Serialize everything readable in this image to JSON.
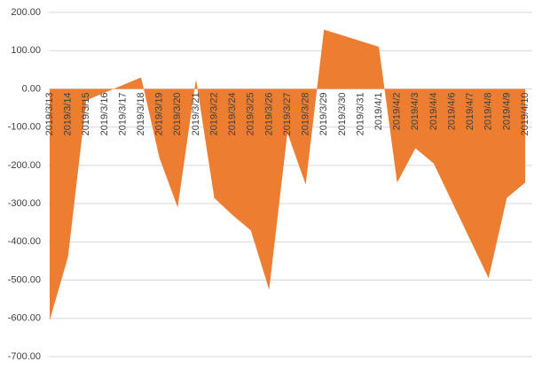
{
  "chart_data": {
    "type": "area",
    "categories": [
      "2019/3/13",
      "2019/3/14",
      "2019/3/15",
      "2019/3/16",
      "2019/3/17",
      "2019/3/18",
      "2019/3/19",
      "2019/3/20",
      "2019/3/21",
      "2019/3/22",
      "2019/3/24",
      "2019/3/25",
      "2019/3/26",
      "2019/3/27",
      "2019/3/28",
      "2019/3/29",
      "2019/3/30",
      "2019/3/31",
      "2019/4/1",
      "2019/4/2",
      "2019/4/3",
      "2019/4/4",
      "2019/4/6",
      "2019/4/7",
      "2019/4/8",
      "2019/4/9",
      "2019/4/10"
    ],
    "values": [
      -605,
      -440,
      -30,
      -10,
      10,
      30,
      -180,
      -310,
      25,
      -285,
      -330,
      -370,
      -525,
      -115,
      -250,
      155,
      140,
      125,
      110,
      -245,
      -155,
      -195,
      -295,
      -395,
      -495,
      -285,
      -245
    ],
    "color": "#ed7d31",
    "ylim": [
      -700,
      200
    ],
    "yticks": [
      {
        "value": -700,
        "label": "-700.00"
      },
      {
        "value": -600,
        "label": "-600.00"
      },
      {
        "value": -500,
        "label": "-500.00"
      },
      {
        "value": -400,
        "label": "-400.00"
      },
      {
        "value": -300,
        "label": "-300.00"
      },
      {
        "value": -200,
        "label": "-200.00"
      },
      {
        "value": -100,
        "label": "-100.00"
      },
      {
        "value": 0,
        "label": "0.00"
      },
      {
        "value": 100,
        "label": "100.00"
      },
      {
        "value": 200,
        "label": "200.00"
      }
    ],
    "grid": true
  }
}
